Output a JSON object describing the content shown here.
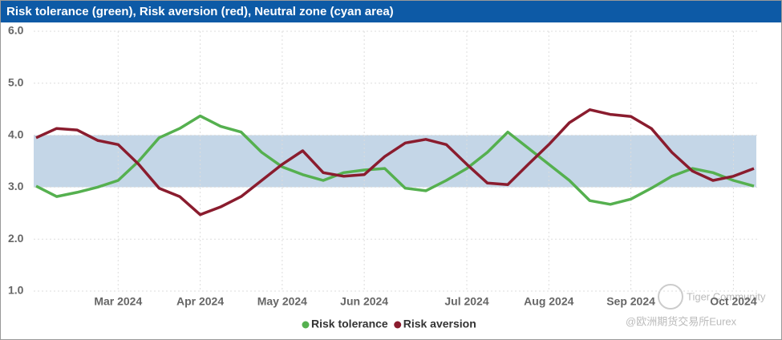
{
  "chart_data": {
    "type": "line",
    "title": "Risk tolerance (green), Risk aversion (red), Neutral zone (cyan area)",
    "categories": [
      null,
      null,
      null,
      null,
      "Mar 2024",
      null,
      null,
      null,
      "Apr 2024",
      null,
      null,
      null,
      "May 2024",
      null,
      null,
      null,
      "Jun 2024",
      null,
      null,
      null,
      null,
      "Jul 2024",
      null,
      null,
      null,
      "Aug 2024",
      null,
      null,
      null,
      "Sep 2024",
      null,
      null,
      null,
      null,
      "Oct 2024",
      null
    ],
    "series": [
      {
        "name": "Risk tolerance",
        "color": "#55b04f",
        "values": [
          3.02,
          2.82,
          2.9,
          3.0,
          3.13,
          3.5,
          3.95,
          4.13,
          4.37,
          4.17,
          4.06,
          3.67,
          3.39,
          3.24,
          3.13,
          3.28,
          3.33,
          3.36,
          2.98,
          2.93,
          3.13,
          3.36,
          3.67,
          4.06,
          3.75,
          3.44,
          3.13,
          2.74,
          2.67,
          2.77,
          2.98,
          3.21,
          3.36,
          3.28,
          3.13,
          3.02
        ]
      },
      {
        "name": "Risk aversion",
        "color": "#8a1c2e",
        "values": [
          3.95,
          4.13,
          4.1,
          3.9,
          3.82,
          3.44,
          2.98,
          2.82,
          2.47,
          2.62,
          2.82,
          3.13,
          3.44,
          3.7,
          3.28,
          3.21,
          3.24,
          3.59,
          3.85,
          3.92,
          3.82,
          3.44,
          3.08,
          3.05,
          3.44,
          3.82,
          4.24,
          4.49,
          4.4,
          4.36,
          4.13,
          3.67,
          3.31,
          3.13,
          3.21,
          3.36
        ]
      }
    ],
    "bands": [
      {
        "from": 3,
        "to": 4,
        "color": "#c4d6e7"
      }
    ],
    "ylim": [
      1,
      6
    ],
    "yticks": [
      {
        "value": 1,
        "label": "1.0"
      },
      {
        "value": 2,
        "label": "2.0"
      },
      {
        "value": 3,
        "label": "3.0"
      },
      {
        "value": 4,
        "label": "4.0"
      },
      {
        "value": 5,
        "label": "5.0"
      },
      {
        "value": 6,
        "label": "6.0"
      }
    ],
    "grid": true,
    "legend": "bottom",
    "watermarks": [
      "Tiger Community",
      "@欧洲期货交易所Eurex"
    ]
  }
}
